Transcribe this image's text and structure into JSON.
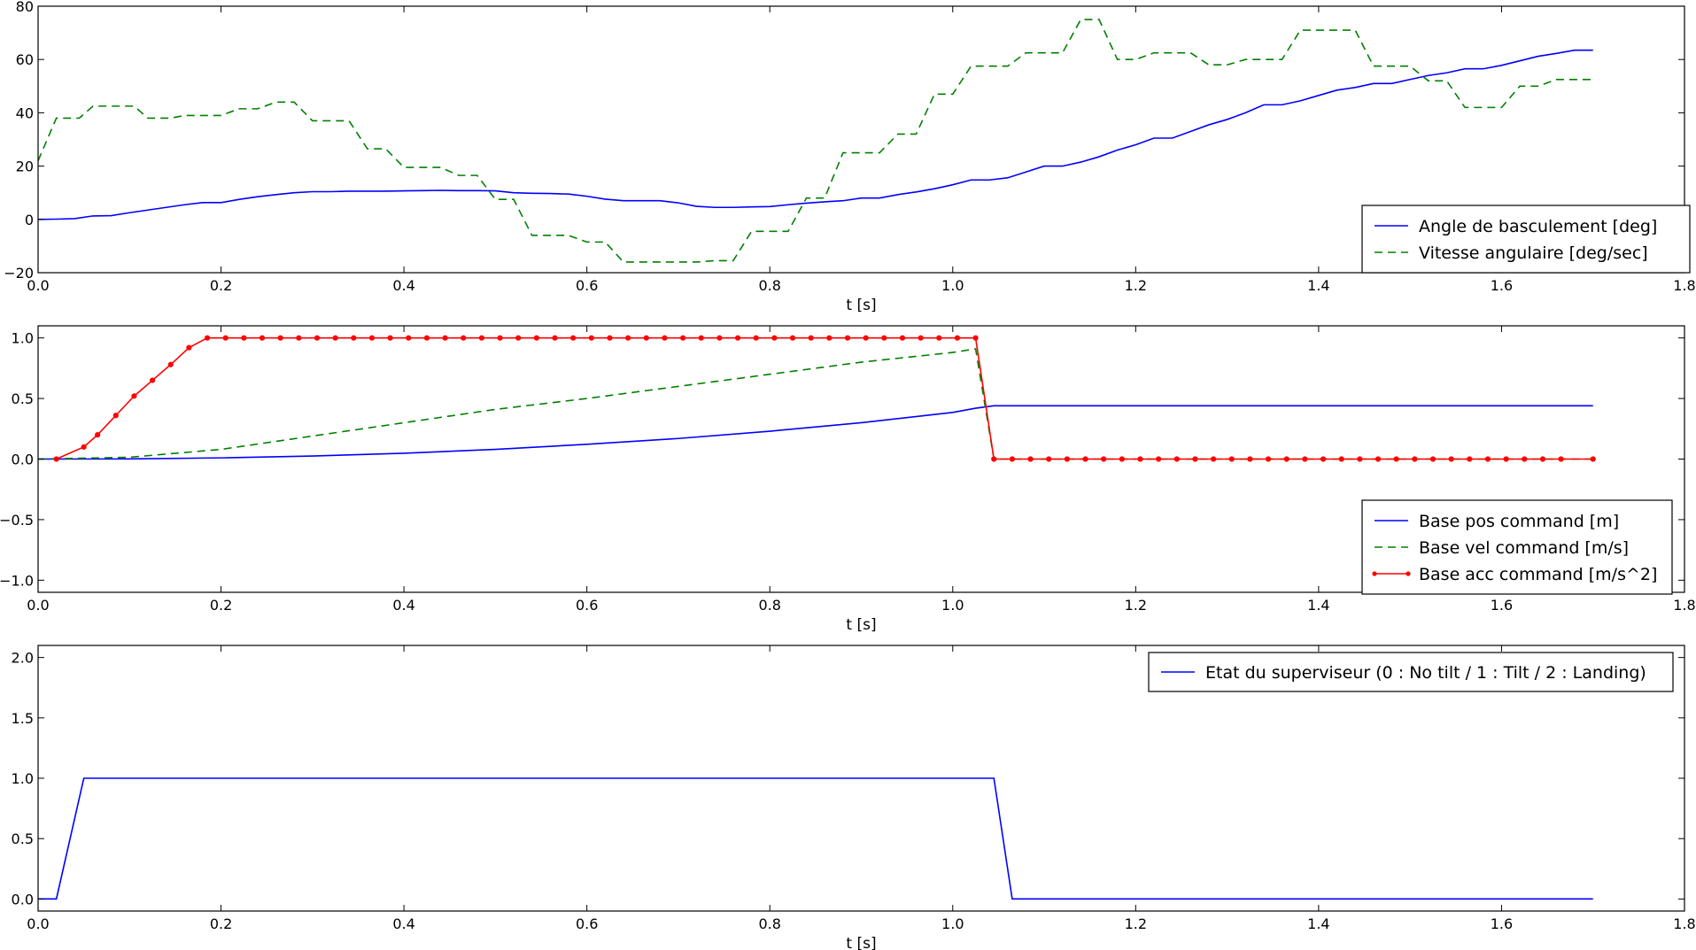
{
  "chart_data": [
    {
      "type": "line",
      "xlabel": "t [s]",
      "ylabel": "",
      "xlim": [
        0,
        1.8
      ],
      "ylim": [
        -20,
        80
      ],
      "xticks": [
        0.0,
        0.2,
        0.4,
        0.6,
        0.8,
        1.0,
        1.2,
        1.4,
        1.6,
        1.8
      ],
      "xtick_labels": [
        "0.0",
        "0.2",
        "0.4",
        "0.6",
        "0.8",
        "1.0",
        "1.2",
        "1.4",
        "1.6",
        "1.8"
      ],
      "yticks": [
        -20,
        0,
        20,
        40,
        60,
        80
      ],
      "ytick_labels": [
        "−20",
        "0",
        "20",
        "40",
        "60",
        "80"
      ],
      "grid": false,
      "legend": "lower-right",
      "series": [
        {
          "name": "Angle de basculement [deg]",
          "color": "#0000ff",
          "style": "solid",
          "x": [
            0,
            0.02,
            0.04,
            0.06,
            0.08,
            0.1,
            0.12,
            0.14,
            0.16,
            0.18,
            0.2,
            0.22,
            0.24,
            0.26,
            0.28,
            0.3,
            0.32,
            0.34,
            0.36,
            0.38,
            0.4,
            0.42,
            0.44,
            0.46,
            0.48,
            0.5,
            0.52,
            0.54,
            0.56,
            0.58,
            0.6,
            0.62,
            0.64,
            0.66,
            0.68,
            0.7,
            0.72,
            0.74,
            0.76,
            0.78,
            0.8,
            0.82,
            0.84,
            0.86,
            0.88,
            0.9,
            0.92,
            0.94,
            0.96,
            0.98,
            1.0,
            1.02,
            1.04,
            1.06,
            1.08,
            1.1,
            1.12,
            1.14,
            1.16,
            1.18,
            1.2,
            1.22,
            1.24,
            1.26,
            1.28,
            1.3,
            1.32,
            1.34,
            1.36,
            1.38,
            1.4,
            1.42,
            1.44,
            1.46,
            1.48,
            1.5,
            1.52,
            1.54,
            1.56,
            1.58,
            1.6,
            1.62,
            1.64,
            1.66,
            1.68,
            1.7
          ],
          "y": [
            0,
            0.1,
            0.3,
            1.3,
            1.4,
            2.5,
            3.5,
            4.5,
            5.5,
            6.3,
            6.3,
            7.5,
            8.5,
            9.3,
            10,
            10.4,
            10.4,
            10.6,
            10.6,
            10.6,
            10.7,
            10.8,
            10.9,
            10.8,
            10.8,
            10.7,
            10,
            9.8,
            9.7,
            9.5,
            8.7,
            7.6,
            7,
            7,
            7,
            6.2,
            4.9,
            4.5,
            4.5,
            4.7,
            4.8,
            5.5,
            6.1,
            6.6,
            7,
            8,
            8,
            9.3,
            10.3,
            11.5,
            13,
            14.8,
            14.8,
            15.6,
            17.8,
            20,
            20,
            21.5,
            23.5,
            26,
            28,
            30.5,
            30.5,
            33,
            35.5,
            37.5,
            40,
            43,
            43,
            44.5,
            46.5,
            48.5,
            49.5,
            51,
            51,
            52.5,
            54,
            55,
            56.5,
            56.5,
            57.8,
            59.5,
            61.2,
            62.3,
            63.5,
            63.5
          ]
        },
        {
          "name": "Vitesse angulaire [deg/sec]",
          "color": "#008000",
          "style": "dashed",
          "x": [
            0,
            0.02,
            0.04,
            0.045,
            0.06,
            0.08,
            0.1,
            0.105,
            0.12,
            0.14,
            0.145,
            0.16,
            0.18,
            0.2,
            0.22,
            0.24,
            0.26,
            0.28,
            0.3,
            0.32,
            0.34,
            0.36,
            0.38,
            0.4,
            0.42,
            0.44,
            0.46,
            0.48,
            0.5,
            0.52,
            0.54,
            0.56,
            0.58,
            0.6,
            0.62,
            0.64,
            0.66,
            0.68,
            0.7,
            0.72,
            0.74,
            0.76,
            0.78,
            0.8,
            0.82,
            0.84,
            0.86,
            0.88,
            0.9,
            0.92,
            0.94,
            0.96,
            0.98,
            1.0,
            1.02,
            1.04,
            1.06,
            1.08,
            1.1,
            1.12,
            1.14,
            1.16,
            1.18,
            1.2,
            1.22,
            1.24,
            1.26,
            1.28,
            1.3,
            1.32,
            1.34,
            1.36,
            1.38,
            1.4,
            1.42,
            1.44,
            1.46,
            1.48,
            1.5,
            1.52,
            1.54,
            1.56,
            1.58,
            1.6,
            1.62,
            1.64,
            1.66,
            1.68,
            1.7
          ],
          "y": [
            22,
            38,
            38,
            38,
            42.5,
            42.5,
            42.5,
            42.5,
            38,
            38,
            38,
            39,
            39,
            39,
            41.5,
            41.5,
            44,
            44,
            37,
            37,
            37,
            26.5,
            26.5,
            19.5,
            19.5,
            19.5,
            16.5,
            16.5,
            7.5,
            7.5,
            -6,
            -6,
            -6,
            -8.5,
            -8.5,
            -16,
            -16,
            -16,
            -16,
            -16,
            -15.5,
            -15.5,
            -4.5,
            -4.5,
            -4.5,
            8,
            8,
            25,
            25,
            25,
            32,
            32,
            47,
            47,
            57.5,
            57.5,
            57.5,
            62.5,
            62.5,
            62.5,
            75,
            75,
            60,
            60,
            62.5,
            62.5,
            62.5,
            58,
            58,
            60,
            60,
            60,
            71,
            71,
            71,
            71,
            57.5,
            57.5,
            57.5,
            52,
            52,
            42,
            42,
            42,
            50,
            50,
            52.5,
            52.5,
            52.5
          ]
        }
      ]
    },
    {
      "type": "line",
      "xlabel": "t [s]",
      "ylabel": "",
      "xlim": [
        0,
        1.8
      ],
      "ylim": [
        -1.1,
        1.1
      ],
      "xticks": [
        0.0,
        0.2,
        0.4,
        0.6,
        0.8,
        1.0,
        1.2,
        1.4,
        1.6,
        1.8
      ],
      "xtick_labels": [
        "0.0",
        "0.2",
        "0.4",
        "0.6",
        "0.8",
        "1.0",
        "1.2",
        "1.4",
        "1.6",
        "1.8"
      ],
      "yticks": [
        -1.0,
        -0.5,
        0.0,
        0.5,
        1.0
      ],
      "ytick_labels": [
        "−1.0",
        "−0.5",
        "0.0",
        "0.5",
        "1.0"
      ],
      "grid": false,
      "legend": "lower-right",
      "series": [
        {
          "name": "Base pos command [m]",
          "color": "#0000ff",
          "style": "solid",
          "x": [
            0,
            0.1,
            0.2,
            0.3,
            0.4,
            0.5,
            0.6,
            0.7,
            0.8,
            0.9,
            1.0,
            1.025,
            1.045,
            1.1,
            1.2,
            1.3,
            1.4,
            1.5,
            1.6,
            1.7
          ],
          "y": [
            0,
            0.001,
            0.01,
            0.025,
            0.048,
            0.08,
            0.122,
            0.17,
            0.23,
            0.3,
            0.385,
            0.42,
            0.44,
            0.44,
            0.44,
            0.44,
            0.44,
            0.44,
            0.44,
            0.44
          ],
          "markers": false
        },
        {
          "name": "Base vel command [m/s]",
          "color": "#008000",
          "style": "dashed",
          "x": [
            0,
            0.1,
            0.2,
            0.3,
            0.4,
            0.5,
            0.6,
            0.7,
            0.8,
            0.9,
            1.0,
            1.025,
            1.045,
            1.1,
            1.2,
            1.3,
            1.4,
            1.5,
            1.6,
            1.7
          ],
          "y": [
            0,
            0.015,
            0.08,
            0.19,
            0.3,
            0.41,
            0.5,
            0.6,
            0.7,
            0.8,
            0.88,
            0.91,
            0,
            0,
            0,
            0,
            0,
            0,
            0,
            0
          ],
          "markers": false
        },
        {
          "name": "Base acc command [m/s^2]",
          "color": "#ff0000",
          "style": "solid",
          "x": [
            0.02,
            0.05,
            0.065,
            0.085,
            0.105,
            0.125,
            0.145,
            0.165,
            0.185,
            0.205,
            0.225,
            0.245,
            0.265,
            0.285,
            0.305,
            0.325,
            0.345,
            0.365,
            0.385,
            0.405,
            0.425,
            0.445,
            0.465,
            0.485,
            0.505,
            0.525,
            0.545,
            0.565,
            0.585,
            0.605,
            0.625,
            0.645,
            0.665,
            0.685,
            0.705,
            0.725,
            0.745,
            0.765,
            0.785,
            0.805,
            0.825,
            0.845,
            0.865,
            0.885,
            0.905,
            0.925,
            0.945,
            0.965,
            0.985,
            1.005,
            1.025,
            1.045,
            1.065,
            1.085,
            1.105,
            1.125,
            1.145,
            1.165,
            1.185,
            1.205,
            1.225,
            1.245,
            1.265,
            1.285,
            1.305,
            1.325,
            1.345,
            1.365,
            1.385,
            1.405,
            1.425,
            1.445,
            1.465,
            1.485,
            1.505,
            1.525,
            1.545,
            1.565,
            1.585,
            1.605,
            1.625,
            1.645,
            1.665,
            1.7
          ],
          "y": [
            0,
            0.1,
            0.2,
            0.36,
            0.52,
            0.65,
            0.78,
            0.92,
            1,
            1,
            1,
            1,
            1,
            1,
            1,
            1,
            1,
            1,
            1,
            1,
            1,
            1,
            1,
            1,
            1,
            1,
            1,
            1,
            1,
            1,
            1,
            1,
            1,
            1,
            1,
            1,
            1,
            1,
            1,
            1,
            1,
            1,
            1,
            1,
            1,
            1,
            1,
            1,
            1,
            1,
            1,
            0,
            0,
            0,
            0,
            0,
            0,
            0,
            0,
            0,
            0,
            0,
            0,
            0,
            0,
            0,
            0,
            0,
            0,
            0,
            0,
            0,
            0,
            0,
            0,
            0,
            0,
            0,
            0,
            0,
            0,
            0,
            0,
            0
          ],
          "markers": true
        }
      ]
    },
    {
      "type": "line",
      "xlabel": "t [s]",
      "ylabel": "",
      "xlim": [
        0,
        1.8
      ],
      "ylim": [
        -0.1,
        2.1
      ],
      "xticks": [
        0.0,
        0.2,
        0.4,
        0.6,
        0.8,
        1.0,
        1.2,
        1.4,
        1.6,
        1.8
      ],
      "xtick_labels": [
        "0.0",
        "0.2",
        "0.4",
        "0.6",
        "0.8",
        "1.0",
        "1.2",
        "1.4",
        "1.6",
        "1.8"
      ],
      "yticks": [
        0.0,
        0.5,
        1.0,
        1.5,
        2.0
      ],
      "ytick_labels": [
        "0.0",
        "0.5",
        "1.0",
        "1.5",
        "2.0"
      ],
      "grid": false,
      "legend": "top-right",
      "series": [
        {
          "name": "Etat du superviseur (0 : No tilt / 1 : Tilt / 2 : Landing)",
          "color": "#0000ff",
          "style": "solid",
          "x": [
            0,
            0.02,
            0.05,
            1.045,
            1.065,
            1.7
          ],
          "y": [
            0,
            0,
            1,
            1,
            0,
            0
          ],
          "markers": false
        }
      ]
    }
  ]
}
